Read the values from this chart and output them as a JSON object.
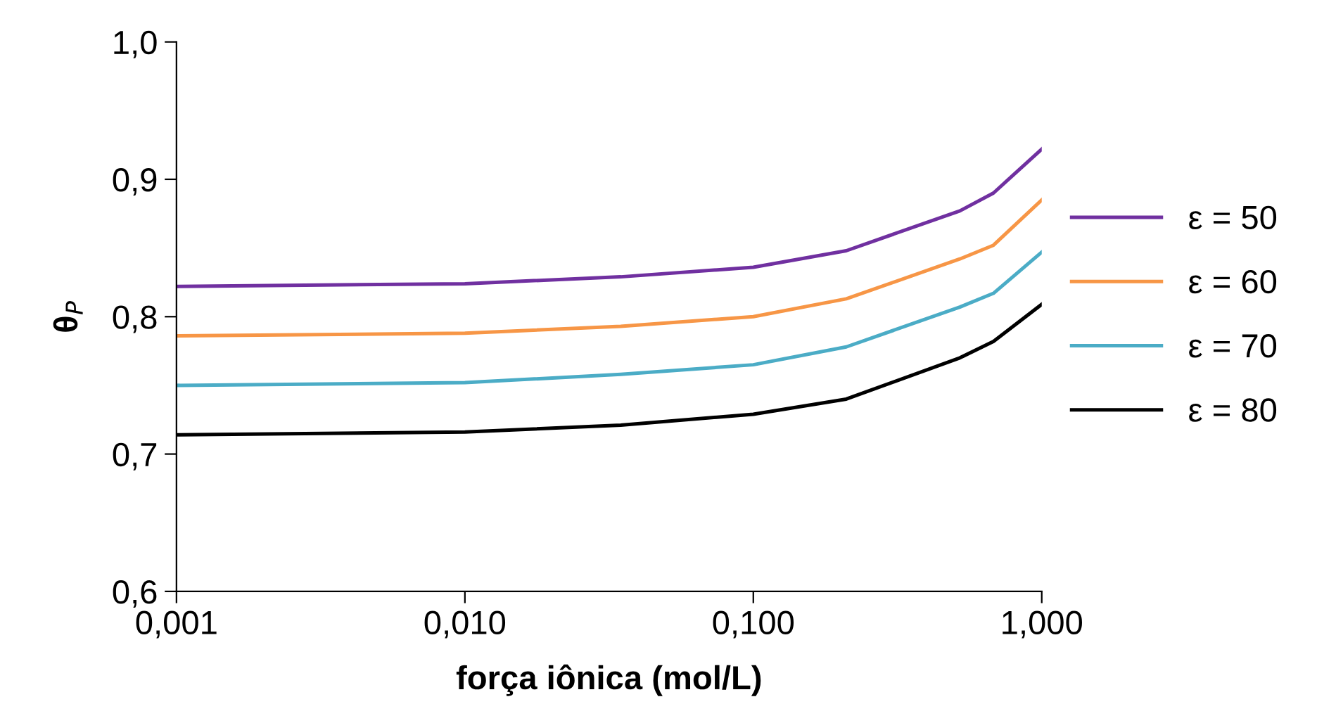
{
  "chart_data": {
    "type": "line",
    "xlabel": "força iônica (mol/L)",
    "ylabel": "θ$_{P}$",
    "x": [
      0.001,
      0.01,
      0.0347,
      0.1,
      0.21,
      0.52,
      0.68,
      1.0
    ],
    "series": [
      {
        "name": "ε = 80",
        "color": "#000000",
        "values": [
          0.714,
          0.716,
          0.721,
          0.729,
          0.74,
          0.77,
          0.782,
          0.809
        ]
      },
      {
        "name": "ε = 70",
        "color": "#4bacc6",
        "values": [
          0.75,
          0.752,
          0.758,
          0.765,
          0.778,
          0.807,
          0.817,
          0.847
        ]
      },
      {
        "name": "ε = 60",
        "color": "#f79646",
        "values": [
          0.786,
          0.788,
          0.793,
          0.8,
          0.813,
          0.842,
          0.852,
          0.885
        ]
      },
      {
        "name": "ε = 50",
        "color": "#7030a0",
        "values": [
          0.822,
          0.824,
          0.829,
          0.836,
          0.848,
          0.877,
          0.89,
          0.922
        ]
      }
    ],
    "log": "x",
    "xlim": [
      0.001,
      1.0
    ],
    "xticks": [
      {
        "value": 0.001,
        "label": "0,001"
      },
      {
        "value": 0.01,
        "label": "0,010"
      },
      {
        "value": 0.1,
        "label": "0,100"
      },
      {
        "value": 1.0,
        "label": "1,000"
      }
    ],
    "ylim": [
      0.6,
      1.0
    ],
    "yticks": [
      {
        "value": 0.6,
        "label": "0,6"
      },
      {
        "value": 0.7,
        "label": "0,7"
      },
      {
        "value": 0.8,
        "label": "0,8"
      },
      {
        "value": 0.9,
        "label": "0,9"
      },
      {
        "value": 1.0,
        "label": "1,0"
      }
    ],
    "grid": false,
    "legend": "right",
    "marker": "none",
    "line_style": "solid"
  }
}
